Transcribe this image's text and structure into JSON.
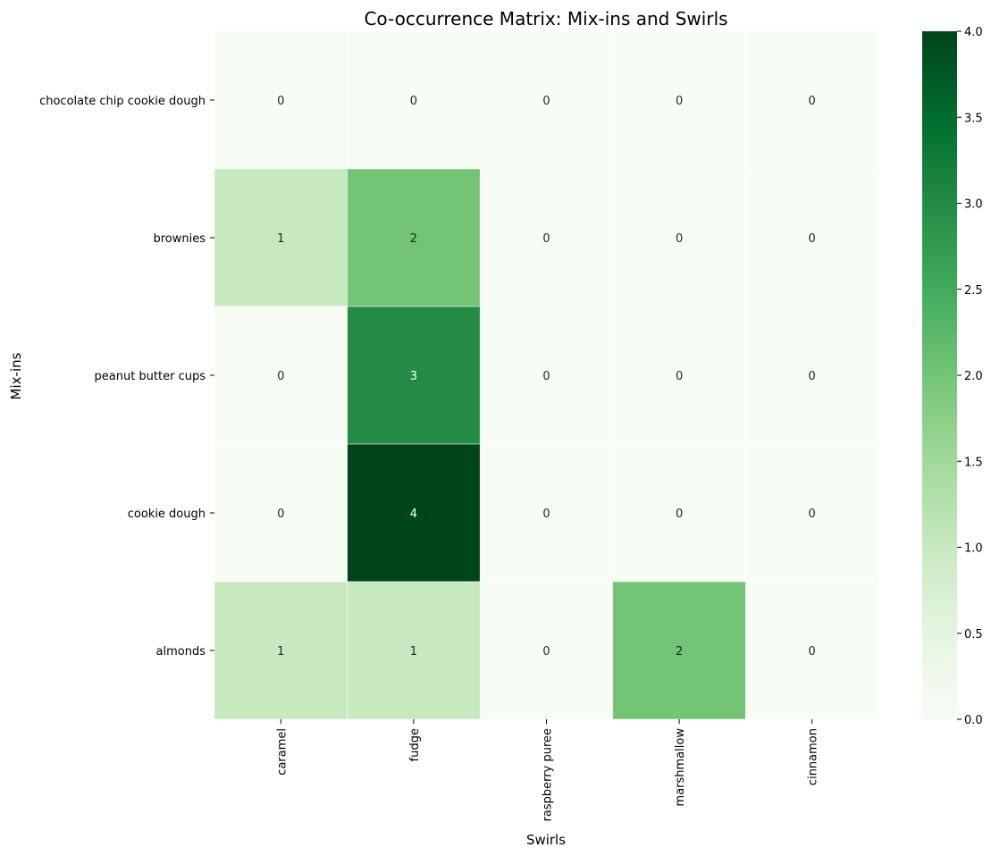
{
  "chart_data": {
    "type": "heatmap",
    "title": "Co-occurrence Matrix: Mix-ins and Swirls",
    "xlabel": "Swirls",
    "ylabel": "Mix-ins",
    "x_categories": [
      "caramel",
      "fudge",
      "raspberry puree",
      "marshmallow",
      "cinnamon"
    ],
    "y_categories": [
      "chocolate chip cookie dough",
      "brownies",
      "peanut butter cups",
      "cookie dough",
      "almonds"
    ],
    "values": [
      [
        0,
        0,
        0,
        0,
        0
      ],
      [
        1,
        2,
        0,
        0,
        0
      ],
      [
        0,
        3,
        0,
        0,
        0
      ],
      [
        0,
        4,
        0,
        0,
        0
      ],
      [
        1,
        1,
        0,
        2,
        0
      ]
    ],
    "colorscale": "Greens",
    "colorbar": {
      "range": [
        0,
        4
      ],
      "ticks": [
        "0.0",
        "0.5",
        "1.0",
        "1.5",
        "2.0",
        "2.5",
        "3.0",
        "3.5",
        "4.0"
      ]
    },
    "grid": false,
    "annotated": true
  }
}
